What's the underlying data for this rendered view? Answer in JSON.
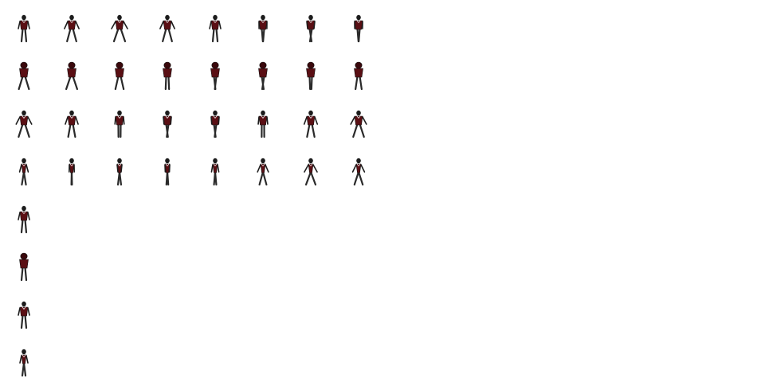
{
  "sprite_sheet": {
    "background": "#ffffff",
    "colors": {
      "shirt": "#5a0f14",
      "shirt_shadow": "#3a080c",
      "pants": "#2a2a2a",
      "skin": "#1c1c1c",
      "outline": "#0d0d0d"
    },
    "rows": [
      {
        "name": "walk-front-left",
        "pose": "walk",
        "facing": "front",
        "frames": 8
      },
      {
        "name": "walk-back",
        "pose": "walk",
        "facing": "back",
        "frames": 8
      },
      {
        "name": "walk-front-right",
        "pose": "walk",
        "facing": "front",
        "frames": 8
      },
      {
        "name": "walk-side",
        "pose": "walk",
        "facing": "side",
        "frames": 8
      },
      {
        "name": "idle-front",
        "pose": "idle",
        "facing": "front",
        "frames": 1
      },
      {
        "name": "idle-back",
        "pose": "idle",
        "facing": "back",
        "frames": 1
      },
      {
        "name": "idle-front-alt",
        "pose": "idle",
        "facing": "front",
        "frames": 1
      },
      {
        "name": "idle-side",
        "pose": "idle",
        "facing": "side",
        "frames": 1
      }
    ]
  }
}
